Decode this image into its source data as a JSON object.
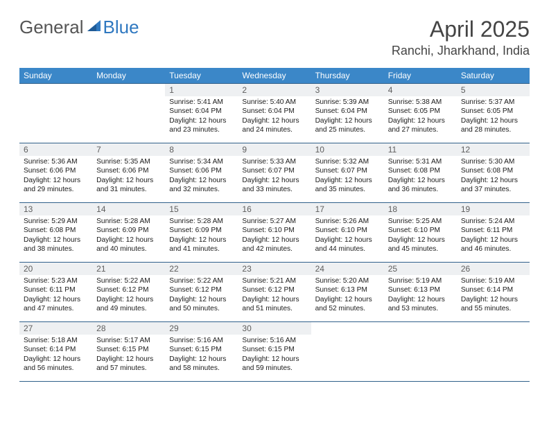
{
  "brand": {
    "part1": "General",
    "part2": "Blue"
  },
  "title": "April 2025",
  "location": "Ranchi, Jharkhand, India",
  "colors": {
    "header_bg": "#3b87c8",
    "header_text": "#ffffff",
    "border": "#2f5f8a",
    "daynum_bg": "#eef0f2",
    "daynum_text": "#5d5d5d",
    "body_text": "#1a1a1a",
    "logo_general": "#555555",
    "logo_blue": "#2f78c0"
  },
  "day_headers": [
    "Sunday",
    "Monday",
    "Tuesday",
    "Wednesday",
    "Thursday",
    "Friday",
    "Saturday"
  ],
  "weeks": [
    [
      null,
      null,
      {
        "n": "1",
        "sr": "5:41 AM",
        "ss": "6:04 PM",
        "dl": "12 hours and 23 minutes."
      },
      {
        "n": "2",
        "sr": "5:40 AM",
        "ss": "6:04 PM",
        "dl": "12 hours and 24 minutes."
      },
      {
        "n": "3",
        "sr": "5:39 AM",
        "ss": "6:04 PM",
        "dl": "12 hours and 25 minutes."
      },
      {
        "n": "4",
        "sr": "5:38 AM",
        "ss": "6:05 PM",
        "dl": "12 hours and 27 minutes."
      },
      {
        "n": "5",
        "sr": "5:37 AM",
        "ss": "6:05 PM",
        "dl": "12 hours and 28 minutes."
      }
    ],
    [
      {
        "n": "6",
        "sr": "5:36 AM",
        "ss": "6:06 PM",
        "dl": "12 hours and 29 minutes."
      },
      {
        "n": "7",
        "sr": "5:35 AM",
        "ss": "6:06 PM",
        "dl": "12 hours and 31 minutes."
      },
      {
        "n": "8",
        "sr": "5:34 AM",
        "ss": "6:06 PM",
        "dl": "12 hours and 32 minutes."
      },
      {
        "n": "9",
        "sr": "5:33 AM",
        "ss": "6:07 PM",
        "dl": "12 hours and 33 minutes."
      },
      {
        "n": "10",
        "sr": "5:32 AM",
        "ss": "6:07 PM",
        "dl": "12 hours and 35 minutes."
      },
      {
        "n": "11",
        "sr": "5:31 AM",
        "ss": "6:08 PM",
        "dl": "12 hours and 36 minutes."
      },
      {
        "n": "12",
        "sr": "5:30 AM",
        "ss": "6:08 PM",
        "dl": "12 hours and 37 minutes."
      }
    ],
    [
      {
        "n": "13",
        "sr": "5:29 AM",
        "ss": "6:08 PM",
        "dl": "12 hours and 38 minutes."
      },
      {
        "n": "14",
        "sr": "5:28 AM",
        "ss": "6:09 PM",
        "dl": "12 hours and 40 minutes."
      },
      {
        "n": "15",
        "sr": "5:28 AM",
        "ss": "6:09 PM",
        "dl": "12 hours and 41 minutes."
      },
      {
        "n": "16",
        "sr": "5:27 AM",
        "ss": "6:10 PM",
        "dl": "12 hours and 42 minutes."
      },
      {
        "n": "17",
        "sr": "5:26 AM",
        "ss": "6:10 PM",
        "dl": "12 hours and 44 minutes."
      },
      {
        "n": "18",
        "sr": "5:25 AM",
        "ss": "6:10 PM",
        "dl": "12 hours and 45 minutes."
      },
      {
        "n": "19",
        "sr": "5:24 AM",
        "ss": "6:11 PM",
        "dl": "12 hours and 46 minutes."
      }
    ],
    [
      {
        "n": "20",
        "sr": "5:23 AM",
        "ss": "6:11 PM",
        "dl": "12 hours and 47 minutes."
      },
      {
        "n": "21",
        "sr": "5:22 AM",
        "ss": "6:12 PM",
        "dl": "12 hours and 49 minutes."
      },
      {
        "n": "22",
        "sr": "5:22 AM",
        "ss": "6:12 PM",
        "dl": "12 hours and 50 minutes."
      },
      {
        "n": "23",
        "sr": "5:21 AM",
        "ss": "6:12 PM",
        "dl": "12 hours and 51 minutes."
      },
      {
        "n": "24",
        "sr": "5:20 AM",
        "ss": "6:13 PM",
        "dl": "12 hours and 52 minutes."
      },
      {
        "n": "25",
        "sr": "5:19 AM",
        "ss": "6:13 PM",
        "dl": "12 hours and 53 minutes."
      },
      {
        "n": "26",
        "sr": "5:19 AM",
        "ss": "6:14 PM",
        "dl": "12 hours and 55 minutes."
      }
    ],
    [
      {
        "n": "27",
        "sr": "5:18 AM",
        "ss": "6:14 PM",
        "dl": "12 hours and 56 minutes."
      },
      {
        "n": "28",
        "sr": "5:17 AM",
        "ss": "6:15 PM",
        "dl": "12 hours and 57 minutes."
      },
      {
        "n": "29",
        "sr": "5:16 AM",
        "ss": "6:15 PM",
        "dl": "12 hours and 58 minutes."
      },
      {
        "n": "30",
        "sr": "5:16 AM",
        "ss": "6:15 PM",
        "dl": "12 hours and 59 minutes."
      },
      null,
      null,
      null
    ]
  ],
  "labels": {
    "sunrise": "Sunrise:",
    "sunset": "Sunset:",
    "daylight": "Daylight:"
  }
}
